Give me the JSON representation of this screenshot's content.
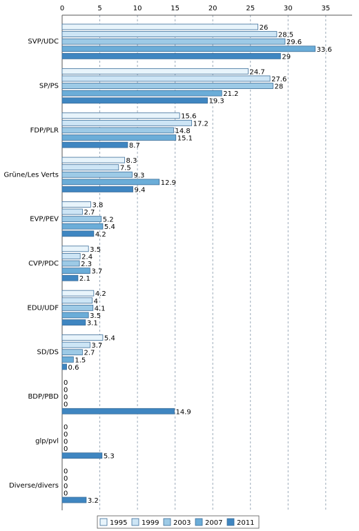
{
  "chart_data": {
    "type": "bar",
    "orientation": "horizontal",
    "categories": [
      "SVP/UDC",
      "SP/PS",
      "FDP/PLR",
      "Grüne/Les Verts",
      "EVP/PEV",
      "CVP/PDC",
      "EDU/UDF",
      "SD/DS",
      "BDP/PBD",
      "glp/pvl",
      "Diverse/divers"
    ],
    "series": [
      {
        "name": "1995",
        "color": "#e8f4fb",
        "values": [
          26,
          24.7,
          15.6,
          8.3,
          3.8,
          3.5,
          4.2,
          5.4,
          0,
          0,
          0
        ]
      },
      {
        "name": "1999",
        "color": "#cde5f5",
        "values": [
          28.5,
          27.6,
          17.2,
          7.5,
          2.7,
          2.4,
          4,
          3.7,
          0,
          0,
          0
        ]
      },
      {
        "name": "2003",
        "color": "#9dcae6",
        "values": [
          29.6,
          28,
          14.8,
          9.3,
          5.2,
          2.3,
          4.1,
          2.7,
          0,
          0,
          0
        ]
      },
      {
        "name": "2007",
        "color": "#6badd8",
        "values": [
          33.6,
          21.2,
          15.1,
          12.9,
          5.4,
          3.7,
          3.5,
          1.5,
          0,
          0,
          0
        ]
      },
      {
        "name": "2011",
        "color": "#3f86c1",
        "values": [
          29,
          19.3,
          8.7,
          9.4,
          4.2,
          2.1,
          3.1,
          0.6,
          14.9,
          5.3,
          3.2
        ]
      }
    ],
    "xlim": [
      0,
      38.5
    ],
    "xticks": [
      0,
      5,
      10,
      15,
      20,
      25,
      30,
      35
    ],
    "grid": true,
    "legend": "bottom"
  }
}
